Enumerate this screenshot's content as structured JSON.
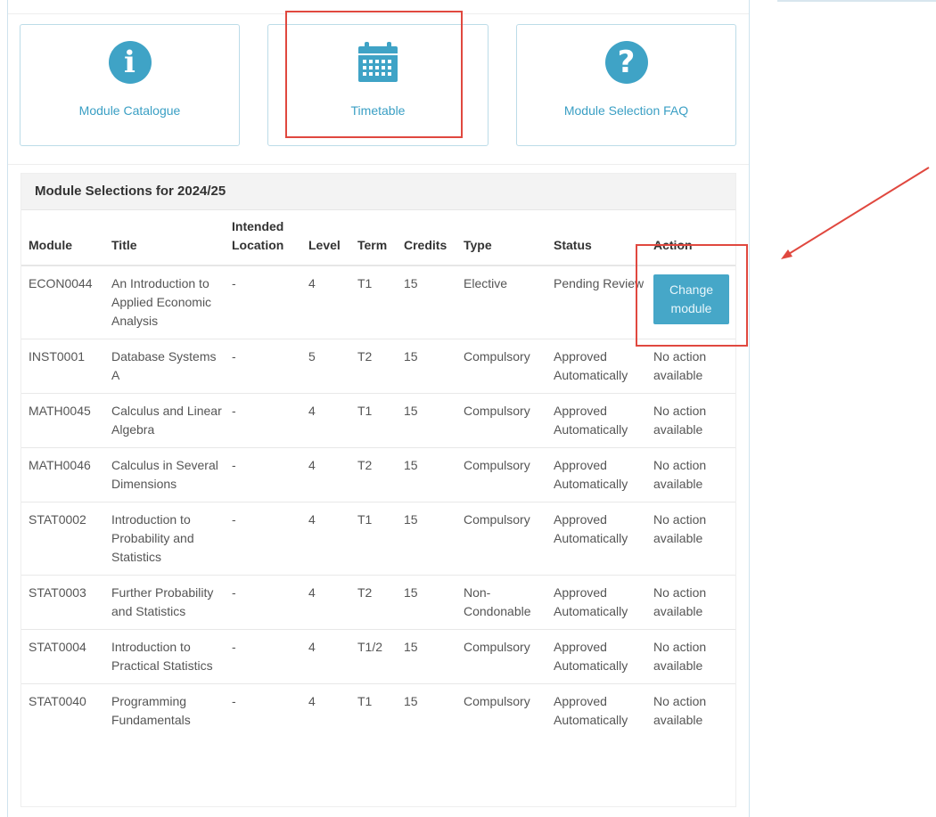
{
  "cards": [
    {
      "label": "Module Catalogue",
      "icon": "info-icon"
    },
    {
      "label": "Timetable",
      "icon": "calendar-icon"
    },
    {
      "label": "Module Selection FAQ",
      "icon": "question-icon"
    }
  ],
  "panel_title": "Module Selections for 2024/25",
  "columns": [
    "Module",
    "Title",
    "Intended Location",
    "Level",
    "Term",
    "Credits",
    "Type",
    "Status",
    "Action"
  ],
  "rows": [
    {
      "module": "ECON0044",
      "title": "An Introduction to Applied Economic Analysis",
      "location": "-",
      "level": "4",
      "term": "T1",
      "credits": "15",
      "type": "Elective",
      "status": "Pending Review",
      "action": "Change module",
      "action_is_button": true
    },
    {
      "module": "INST0001",
      "title": "Database Systems A",
      "location": "-",
      "level": "5",
      "term": "T2",
      "credits": "15",
      "type": "Compulsory",
      "status": "Approved Automatically",
      "action": "No action available"
    },
    {
      "module": "MATH0045",
      "title": "Calculus and Linear Algebra",
      "location": "-",
      "level": "4",
      "term": "T1",
      "credits": "15",
      "type": "Compulsory",
      "status": "Approved Automatically",
      "action": "No action available"
    },
    {
      "module": "MATH0046",
      "title": "Calculus in Several Dimensions",
      "location": "-",
      "level": "4",
      "term": "T2",
      "credits": "15",
      "type": "Compulsory",
      "status": "Approved Automatically",
      "action": "No action available"
    },
    {
      "module": "STAT0002",
      "title": "Introduction to Probability and Statistics",
      "location": "-",
      "level": "4",
      "term": "T1",
      "credits": "15",
      "type": "Compulsory",
      "status": "Approved Automatically",
      "action": "No action available"
    },
    {
      "module": "STAT0003",
      "title": "Further Probability and Statistics",
      "location": "-",
      "level": "4",
      "term": "T2",
      "credits": "15",
      "type": "Non-Condonable",
      "status": "Approved Automatically",
      "action": "No action available"
    },
    {
      "module": "STAT0004",
      "title": "Introduction to Practical Statistics",
      "location": "-",
      "level": "4",
      "term": "T1/2",
      "credits": "15",
      "type": "Compulsory",
      "status": "Approved Automatically",
      "action": "No action available"
    },
    {
      "module": "STAT0040",
      "title": "Programming Fundamentals",
      "location": "-",
      "level": "4",
      "term": "T1",
      "credits": "15",
      "type": "Compulsory",
      "status": "Approved Automatically",
      "action": "No action available"
    }
  ],
  "colors": {
    "accent": "#3fa3c6",
    "annotation": "#e0483f"
  }
}
